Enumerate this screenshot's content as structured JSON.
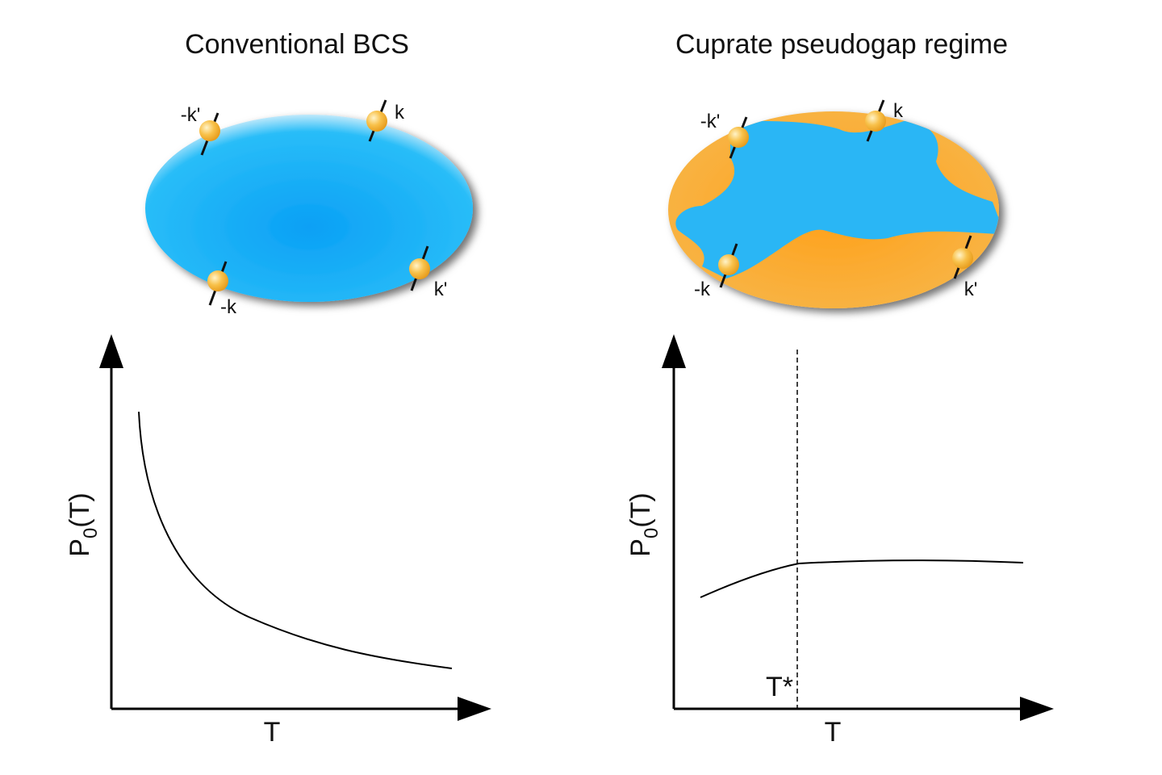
{
  "panels": [
    {
      "title": "Conventional BCS",
      "momenta": [
        "-k'",
        "k",
        "-k",
        "k'"
      ],
      "y_label": {
        "main": "P",
        "sub": "0",
        "tail": "(T)"
      },
      "x_label": "T"
    },
    {
      "title": "Cuprate pseudogap regime",
      "momenta": [
        "-k'",
        "k",
        "-k",
        "k'"
      ],
      "y_label": {
        "main": "P",
        "sub": "0",
        "tail": "(T)"
      },
      "x_label": "T",
      "marker": "T*"
    }
  ]
}
